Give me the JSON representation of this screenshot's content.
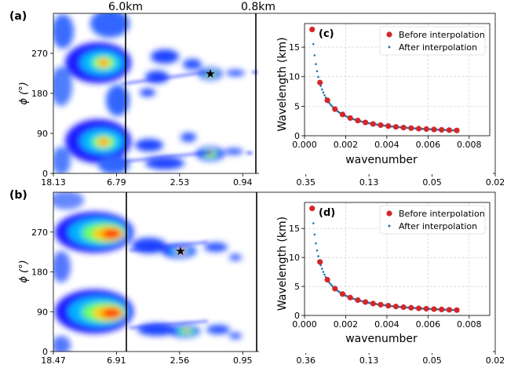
{
  "panels": [
    {
      "label": "(a)",
      "ylabel": "ϕ (°)",
      "y_ticks": [
        0,
        90,
        180,
        270
      ],
      "x_ticks": [
        "18.13",
        "6.79",
        "2.53",
        "0.94",
        "0.35",
        "0.13",
        "0.05",
        "0.02"
      ],
      "marker_lines": [
        "6.0km",
        "0.8km"
      ],
      "colors": {
        "low": "#ffffff",
        "mid": "#0000ff",
        "high": "#ff0000"
      },
      "star_phi": 226
    },
    {
      "label": "(b)",
      "ylabel": "ϕ (°)",
      "y_ticks": [
        0,
        90,
        180,
        270
      ],
      "x_ticks": [
        "18.47",
        "6.91",
        "2.56",
        "0.95",
        "0.36",
        "0.13",
        "0.05",
        "0.02"
      ],
      "marker_lines": [],
      "colors": {
        "low": "#ffffff",
        "mid": "#0000ff",
        "high": "#ff0000"
      },
      "star_phi": 226
    }
  ],
  "chart_data": [
    {
      "type": "scatter",
      "label": "(c)",
      "xlabel": "wavenumber",
      "ylabel": "Wavelength (km)",
      "xlim": [
        0,
        0.009
      ],
      "ylim": [
        0,
        19
      ],
      "x_ticks": [
        "0.000",
        "0.002",
        "0.004",
        "0.006",
        "0.008"
      ],
      "y_ticks": [
        "0",
        "5",
        "10",
        "15"
      ],
      "grid": true,
      "legend_position": "top-right",
      "series": [
        {
          "name": "Before interpolation",
          "color": "#d62728",
          "x": [
            0.00037,
            0.00075,
            0.00111,
            0.00148,
            0.00185,
            0.00222,
            0.00259,
            0.00296,
            0.00333,
            0.0037,
            0.00407,
            0.00444,
            0.00481,
            0.00518,
            0.00555,
            0.00592,
            0.00629,
            0.00666,
            0.00703,
            0.0074
          ],
          "y": [
            18.0,
            9.0,
            6.0,
            4.5,
            3.6,
            3.0,
            2.57,
            2.25,
            2.0,
            1.8,
            1.64,
            1.5,
            1.38,
            1.29,
            1.2,
            1.13,
            1.06,
            1.0,
            0.95,
            0.9
          ]
        },
        {
          "name": "After interpolation",
          "color": "#1f77b4",
          "formula": "y = 0.00667/x",
          "x_range": [
            0.00037,
            0.0075
          ]
        }
      ]
    },
    {
      "type": "scatter",
      "label": "(d)",
      "xlabel": "wavenumber",
      "ylabel": "Wavelength (km)",
      "xlim": [
        0,
        0.009
      ],
      "ylim": [
        0,
        19.5
      ],
      "x_ticks": [
        "0.000",
        "0.002",
        "0.004",
        "0.006",
        "0.008"
      ],
      "y_ticks": [
        "0",
        "5",
        "10",
        "15"
      ],
      "grid": true,
      "legend_position": "top-right",
      "series": [
        {
          "name": "Before interpolation",
          "color": "#d62728",
          "x": [
            0.00037,
            0.00075,
            0.00111,
            0.00148,
            0.00185,
            0.00222,
            0.00259,
            0.00296,
            0.00333,
            0.0037,
            0.00407,
            0.00444,
            0.00481,
            0.00518,
            0.00555,
            0.00592,
            0.00629,
            0.00666,
            0.00703,
            0.0074
          ],
          "y": [
            18.47,
            9.23,
            6.16,
            4.62,
            3.69,
            3.08,
            2.64,
            2.31,
            2.05,
            1.85,
            1.68,
            1.54,
            1.42,
            1.32,
            1.23,
            1.15,
            1.09,
            1.03,
            0.97,
            0.92
          ]
        },
        {
          "name": "After interpolation",
          "color": "#1f77b4",
          "formula": "y = 0.00684/x",
          "x_range": [
            0.00037,
            0.0075
          ]
        }
      ]
    }
  ]
}
